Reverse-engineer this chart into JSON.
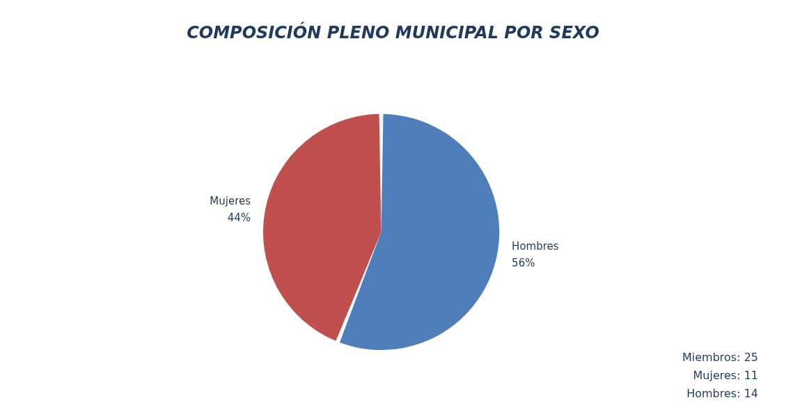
{
  "chart_data": {
    "type": "pie",
    "title": "COMPOSICIÓN PLENO MUNICIPAL POR SEXO",
    "categories": [
      "Hombres",
      "Mujeres"
    ],
    "values": [
      56,
      44
    ],
    "colors": [
      "#4f7fba",
      "#c0504d"
    ],
    "value_labels": [
      "56%",
      "44%"
    ],
    "legend": false,
    "annotations": [
      "Miembros: 25",
      "Mujeres: 11",
      "Hombres: 14"
    ]
  }
}
